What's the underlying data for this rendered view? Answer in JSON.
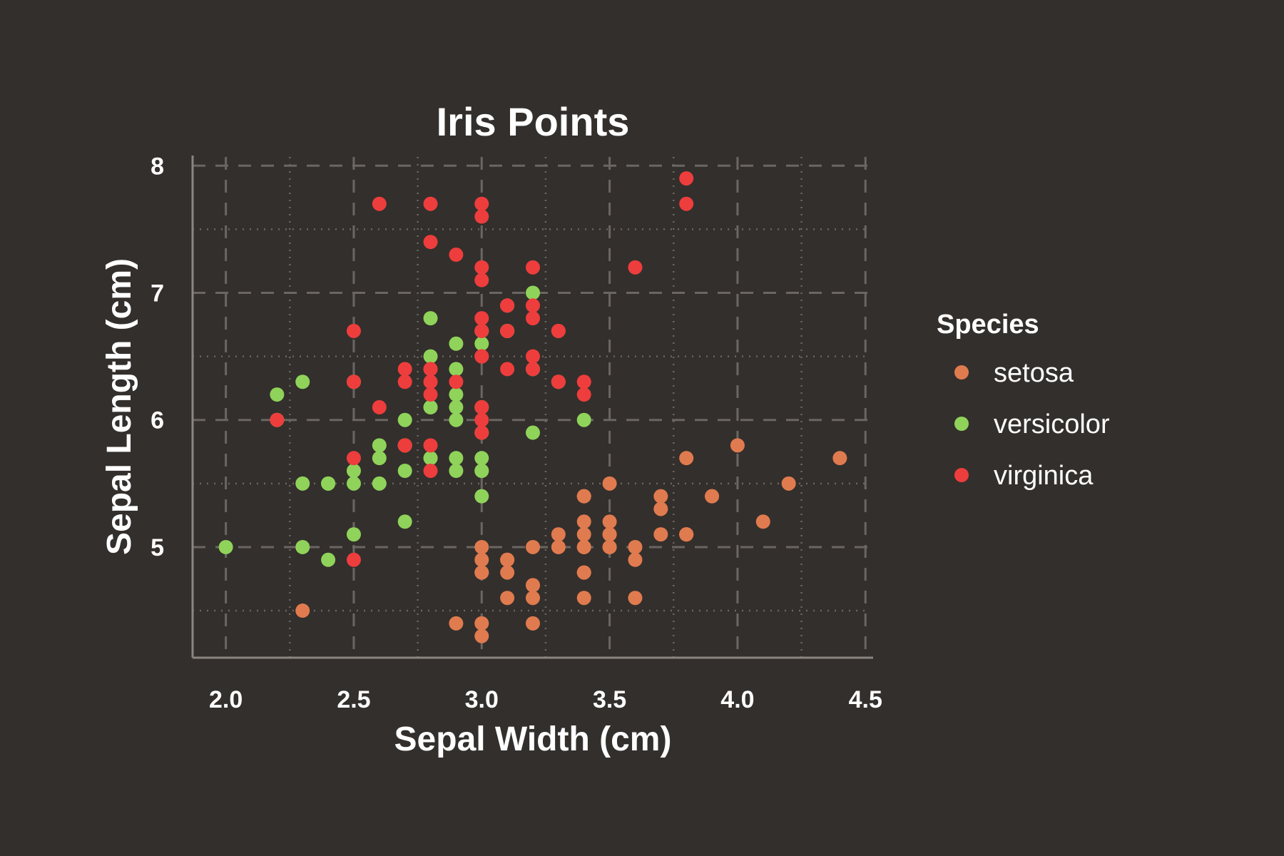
{
  "colors": {
    "background": "#332f2c",
    "axis": "#8a8580",
    "grid": "#6b6662",
    "text": "#ffffff",
    "setosa": "#e07b4f",
    "versicolor": "#8fd35a",
    "virginica": "#ee3d3d"
  },
  "chart_data": {
    "type": "scatter",
    "title": "Iris Points",
    "xlabel": "Sepal Width (cm)",
    "ylabel": "Sepal Length (cm)",
    "xlim": [
      1.87,
      4.53
    ],
    "ylim": [
      4.13,
      8.08
    ],
    "x_ticks": [
      2.0,
      2.5,
      3.0,
      3.5,
      4.0,
      4.5
    ],
    "x_tick_labels": [
      "2.0",
      "2.5",
      "3.0",
      "3.5",
      "4.0",
      "4.5"
    ],
    "y_ticks": [
      5,
      6,
      7,
      8
    ],
    "y_tick_labels": [
      "5",
      "6",
      "7",
      "8"
    ],
    "x_minor_ticks": [
      2.25,
      2.75,
      3.25,
      3.75,
      4.25
    ],
    "y_minor_ticks": [
      4.5,
      5.5,
      6.5,
      7.5
    ],
    "grid": true,
    "legend": {
      "title": "Species",
      "placement": "right"
    },
    "series": [
      {
        "name": "setosa",
        "color": "#e07b4f",
        "points": [
          [
            3.5,
            5.1
          ],
          [
            3.0,
            4.9
          ],
          [
            3.2,
            4.7
          ],
          [
            3.1,
            4.6
          ],
          [
            3.6,
            5.0
          ],
          [
            3.9,
            5.4
          ],
          [
            3.4,
            4.6
          ],
          [
            3.4,
            5.0
          ],
          [
            2.9,
            4.4
          ],
          [
            3.1,
            4.9
          ],
          [
            3.7,
            5.4
          ],
          [
            3.4,
            4.8
          ],
          [
            3.0,
            4.8
          ],
          [
            3.0,
            4.3
          ],
          [
            4.0,
            5.8
          ],
          [
            4.4,
            5.7
          ],
          [
            3.9,
            5.4
          ],
          [
            3.5,
            5.1
          ],
          [
            3.8,
            5.7
          ],
          [
            3.8,
            5.1
          ],
          [
            3.4,
            5.4
          ],
          [
            3.7,
            5.1
          ],
          [
            3.6,
            4.6
          ],
          [
            3.3,
            5.1
          ],
          [
            3.4,
            4.8
          ],
          [
            3.0,
            5.0
          ],
          [
            3.4,
            5.0
          ],
          [
            3.5,
            5.2
          ],
          [
            3.4,
            5.2
          ],
          [
            3.2,
            4.7
          ],
          [
            3.1,
            4.8
          ],
          [
            3.4,
            5.4
          ],
          [
            4.1,
            5.2
          ],
          [
            4.2,
            5.5
          ],
          [
            3.1,
            4.9
          ],
          [
            3.2,
            5.0
          ],
          [
            3.5,
            5.5
          ],
          [
            3.6,
            4.9
          ],
          [
            3.0,
            4.4
          ],
          [
            3.4,
            5.1
          ],
          [
            3.5,
            5.0
          ],
          [
            2.3,
            4.5
          ],
          [
            3.2,
            4.4
          ],
          [
            3.5,
            5.0
          ],
          [
            3.8,
            5.1
          ],
          [
            3.0,
            4.8
          ],
          [
            3.8,
            5.1
          ],
          [
            3.2,
            4.6
          ],
          [
            3.7,
            5.3
          ],
          [
            3.3,
            5.0
          ]
        ]
      },
      {
        "name": "versicolor",
        "color": "#8fd35a",
        "points": [
          [
            3.2,
            7.0
          ],
          [
            3.2,
            6.4
          ],
          [
            3.1,
            6.9
          ],
          [
            2.3,
            5.5
          ],
          [
            2.8,
            6.5
          ],
          [
            2.8,
            5.7
          ],
          [
            3.3,
            6.3
          ],
          [
            2.4,
            4.9
          ],
          [
            2.9,
            6.6
          ],
          [
            2.7,
            5.2
          ],
          [
            2.0,
            5.0
          ],
          [
            3.0,
            5.9
          ],
          [
            2.2,
            6.0
          ],
          [
            2.9,
            6.1
          ],
          [
            2.9,
            5.6
          ],
          [
            3.1,
            6.7
          ],
          [
            3.0,
            5.6
          ],
          [
            2.7,
            5.8
          ],
          [
            2.2,
            6.2
          ],
          [
            2.5,
            5.6
          ],
          [
            3.2,
            5.9
          ],
          [
            2.8,
            6.1
          ],
          [
            2.5,
            6.3
          ],
          [
            2.8,
            6.1
          ],
          [
            2.9,
            6.4
          ],
          [
            3.0,
            6.6
          ],
          [
            2.8,
            6.8
          ],
          [
            3.0,
            6.7
          ],
          [
            2.9,
            6.0
          ],
          [
            2.6,
            5.7
          ],
          [
            2.4,
            5.5
          ],
          [
            2.4,
            5.5
          ],
          [
            2.7,
            5.8
          ],
          [
            2.7,
            6.0
          ],
          [
            3.0,
            5.4
          ],
          [
            3.4,
            6.0
          ],
          [
            3.1,
            6.7
          ],
          [
            2.3,
            6.3
          ],
          [
            3.0,
            5.6
          ],
          [
            2.5,
            5.5
          ],
          [
            2.6,
            5.5
          ],
          [
            3.0,
            6.1
          ],
          [
            2.6,
            5.8
          ],
          [
            2.3,
            5.0
          ],
          [
            2.7,
            5.6
          ],
          [
            3.0,
            5.7
          ],
          [
            2.9,
            5.7
          ],
          [
            2.9,
            6.2
          ],
          [
            2.5,
            5.1
          ],
          [
            2.8,
            5.7
          ]
        ]
      },
      {
        "name": "virginica",
        "color": "#ee3d3d",
        "points": [
          [
            3.3,
            6.3
          ],
          [
            2.7,
            5.8
          ],
          [
            3.0,
            7.1
          ],
          [
            2.9,
            6.3
          ],
          [
            3.0,
            6.5
          ],
          [
            3.0,
            7.6
          ],
          [
            2.5,
            4.9
          ],
          [
            2.9,
            7.3
          ],
          [
            2.5,
            6.7
          ],
          [
            3.6,
            7.2
          ],
          [
            3.2,
            6.5
          ],
          [
            2.7,
            6.4
          ],
          [
            3.0,
            6.8
          ],
          [
            2.5,
            5.7
          ],
          [
            2.8,
            5.8
          ],
          [
            3.2,
            6.4
          ],
          [
            3.0,
            6.5
          ],
          [
            3.8,
            7.7
          ],
          [
            2.6,
            7.7
          ],
          [
            2.2,
            6.0
          ],
          [
            3.2,
            6.9
          ],
          [
            2.8,
            5.6
          ],
          [
            2.8,
            7.7
          ],
          [
            2.7,
            6.3
          ],
          [
            3.3,
            6.7
          ],
          [
            3.2,
            7.2
          ],
          [
            2.8,
            6.2
          ],
          [
            3.0,
            6.1
          ],
          [
            2.8,
            6.4
          ],
          [
            3.0,
            7.2
          ],
          [
            2.8,
            7.4
          ],
          [
            3.8,
            7.9
          ],
          [
            2.8,
            6.4
          ],
          [
            2.8,
            6.3
          ],
          [
            2.6,
            6.1
          ],
          [
            3.0,
            7.7
          ],
          [
            3.4,
            6.3
          ],
          [
            3.1,
            6.4
          ],
          [
            3.0,
            6.0
          ],
          [
            3.1,
            6.9
          ],
          [
            3.1,
            6.7
          ],
          [
            3.1,
            6.9
          ],
          [
            2.7,
            5.8
          ],
          [
            3.2,
            6.8
          ],
          [
            3.3,
            6.7
          ],
          [
            3.0,
            6.7
          ],
          [
            2.5,
            6.3
          ],
          [
            3.0,
            6.5
          ],
          [
            3.4,
            6.2
          ],
          [
            3.0,
            5.9
          ]
        ]
      }
    ]
  }
}
